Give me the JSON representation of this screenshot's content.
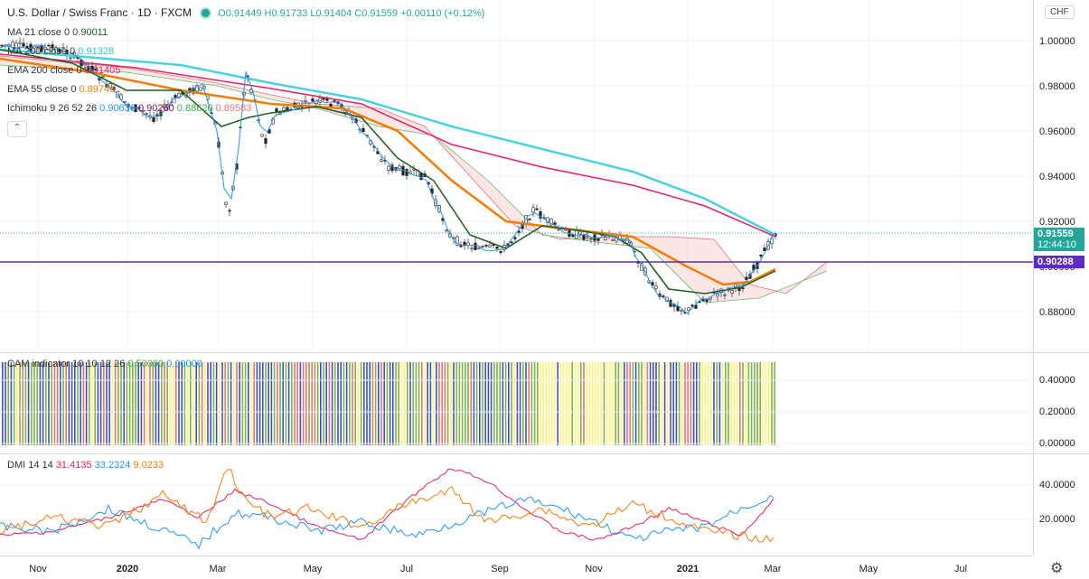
{
  "header": {
    "symbol_title": "U.S. Dollar / Swiss Franc · 1D · FXCM",
    "ohlc": {
      "open": "O0.91449",
      "high": "H0.91733",
      "low": "L0.91404",
      "close": "C0.91559",
      "change": "+0.00110 (+0.12%)"
    },
    "currency": "CHF"
  },
  "indicators": [
    {
      "label": "MA 21 close 0",
      "value": "0.90011",
      "color": "#1b5e20"
    },
    {
      "label": "MA 200 close 0",
      "value": "0.91328",
      "color": "#4dd0e1"
    },
    {
      "label": "EMA 200 close 0",
      "value": "0.91405",
      "color": "#e91e63"
    },
    {
      "label": "EMA 55 close 0",
      "value": "0.89746",
      "color": "#f57c00"
    }
  ],
  "ichimoku": {
    "label": "Ichimoku 9 26 52 26",
    "values": [
      {
        "v": "0.90636",
        "color": "#2196f3"
      },
      {
        "v": "0.90260",
        "color": "#880e4f"
      },
      {
        "v": "0.88620",
        "color": "#43a047"
      },
      {
        "v": "0.89583",
        "color": "#e57373"
      }
    ]
  },
  "price_axis": {
    "labels": [
      "1.00000",
      "0.98000",
      "0.96000",
      "0.94000",
      "0.92000",
      "0.90000",
      "0.88000"
    ],
    "current_price": "0.91559",
    "countdown": "12:44:10",
    "level_price": "0.90288",
    "current_color": "#26a69a",
    "level_color": "#5b2bc4"
  },
  "cam": {
    "label": "CAM indicator 10 10 12 26",
    "values": [
      {
        "v": "0.50000",
        "color": "#43a047"
      },
      {
        "v": "0.00000",
        "color": "#2196f3"
      }
    ],
    "axis_labels": [
      "0.40000",
      "0.20000",
      "0.00000"
    ],
    "colors": {
      "green": "#7cb342",
      "blue": "#3f51b5",
      "yellow": "#fff176",
      "red": "#e57373"
    }
  },
  "dmi": {
    "label": "DMI 14 14",
    "values": [
      {
        "v": "31.4135",
        "color": "#e91e63"
      },
      {
        "v": "33.2324",
        "color": "#2196f3"
      },
      {
        "v": "9.0233",
        "color": "#f57c00"
      }
    ],
    "axis_labels": [
      "40.0000",
      "20.0000"
    ]
  },
  "time_axis": [
    {
      "label": "Nov",
      "bold": false
    },
    {
      "label": "2020",
      "bold": true
    },
    {
      "label": "Mar",
      "bold": false
    },
    {
      "label": "May",
      "bold": false
    },
    {
      "label": "Jul",
      "bold": false
    },
    {
      "label": "Sep",
      "bold": false
    },
    {
      "label": "Nov",
      "bold": false
    },
    {
      "label": "2021",
      "bold": true
    },
    {
      "label": "Mar",
      "bold": false
    },
    {
      "label": "May",
      "bold": false
    },
    {
      "label": "Jul",
      "bold": false
    }
  ]
}
